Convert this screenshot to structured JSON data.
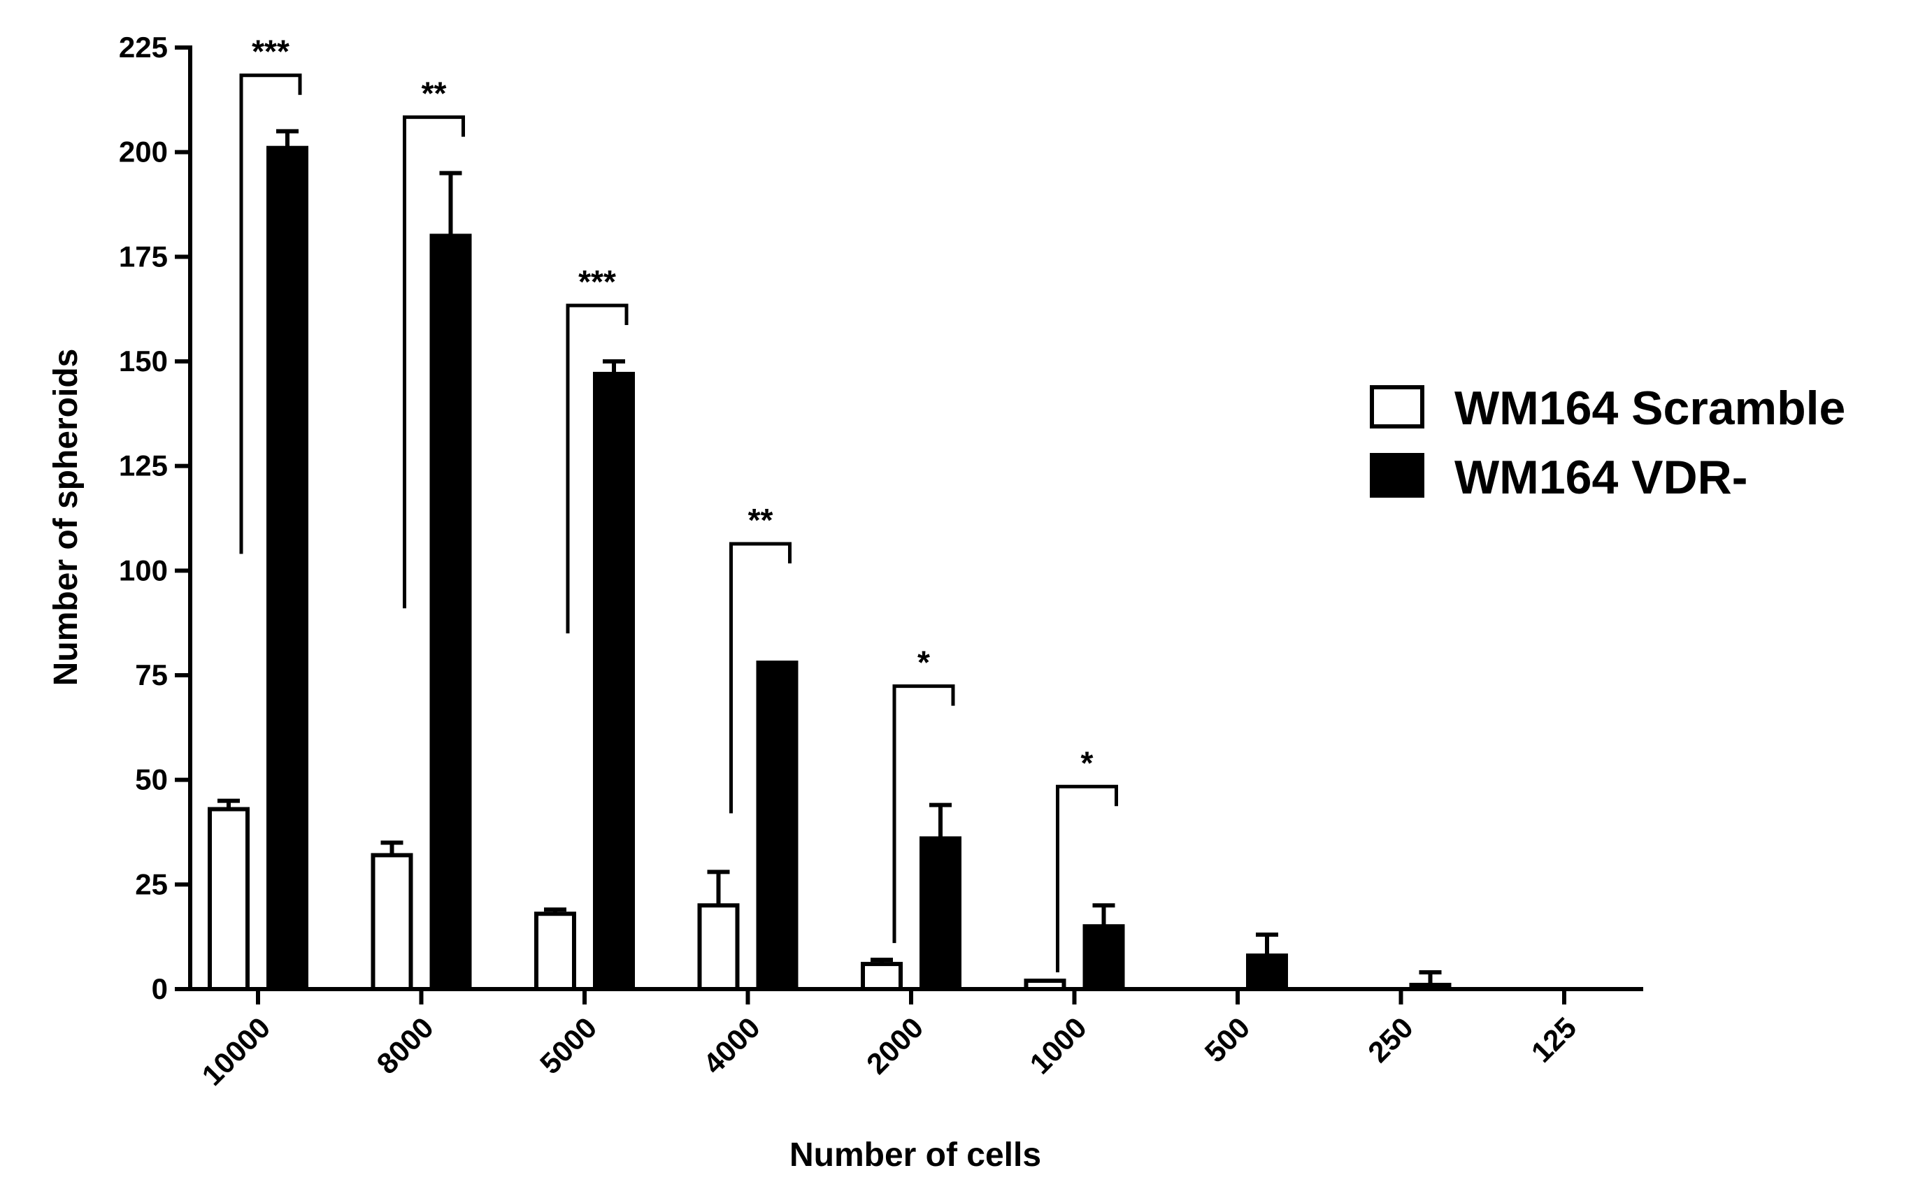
{
  "chart_data": {
    "type": "bar",
    "xlabel": "Number of cells",
    "ylabel": "Number of spheroids",
    "ylim": [
      0,
      225
    ],
    "yticks": [
      0,
      25,
      50,
      75,
      100,
      125,
      150,
      175,
      200,
      225
    ],
    "categories": [
      "10000",
      "8000",
      "5000",
      "4000",
      "2000",
      "1000",
      "500",
      "250",
      "125"
    ],
    "series": [
      {
        "name": "WM164 Scramble",
        "fill": "#ffffff",
        "values": [
          43,
          32,
          18,
          20,
          6,
          2,
          0,
          0,
          0
        ],
        "errors": [
          2,
          3,
          1,
          8,
          1,
          0,
          0,
          0,
          0
        ]
      },
      {
        "name": "WM164 VDR-",
        "fill": "#000000",
        "values": [
          201,
          180,
          147,
          78,
          36,
          15,
          8,
          1,
          0
        ],
        "errors": [
          4,
          15,
          3,
          0,
          8,
          5,
          5,
          3,
          0
        ]
      }
    ],
    "significance": [
      {
        "category": "10000",
        "label": "***",
        "left_y": 104
      },
      {
        "category": "8000",
        "label": "**",
        "left_y": 91
      },
      {
        "category": "5000",
        "label": "***",
        "left_y": 85
      },
      {
        "category": "4000",
        "label": "**",
        "left_y": 42
      },
      {
        "category": "2000",
        "label": "*",
        "left_y": 11
      },
      {
        "category": "1000",
        "label": "*",
        "left_y": 4
      }
    ],
    "legend": "right",
    "grid": false,
    "colors": {
      "axis": "#000000",
      "scramble_fill": "#ffffff",
      "vdr_fill": "#000000"
    }
  }
}
